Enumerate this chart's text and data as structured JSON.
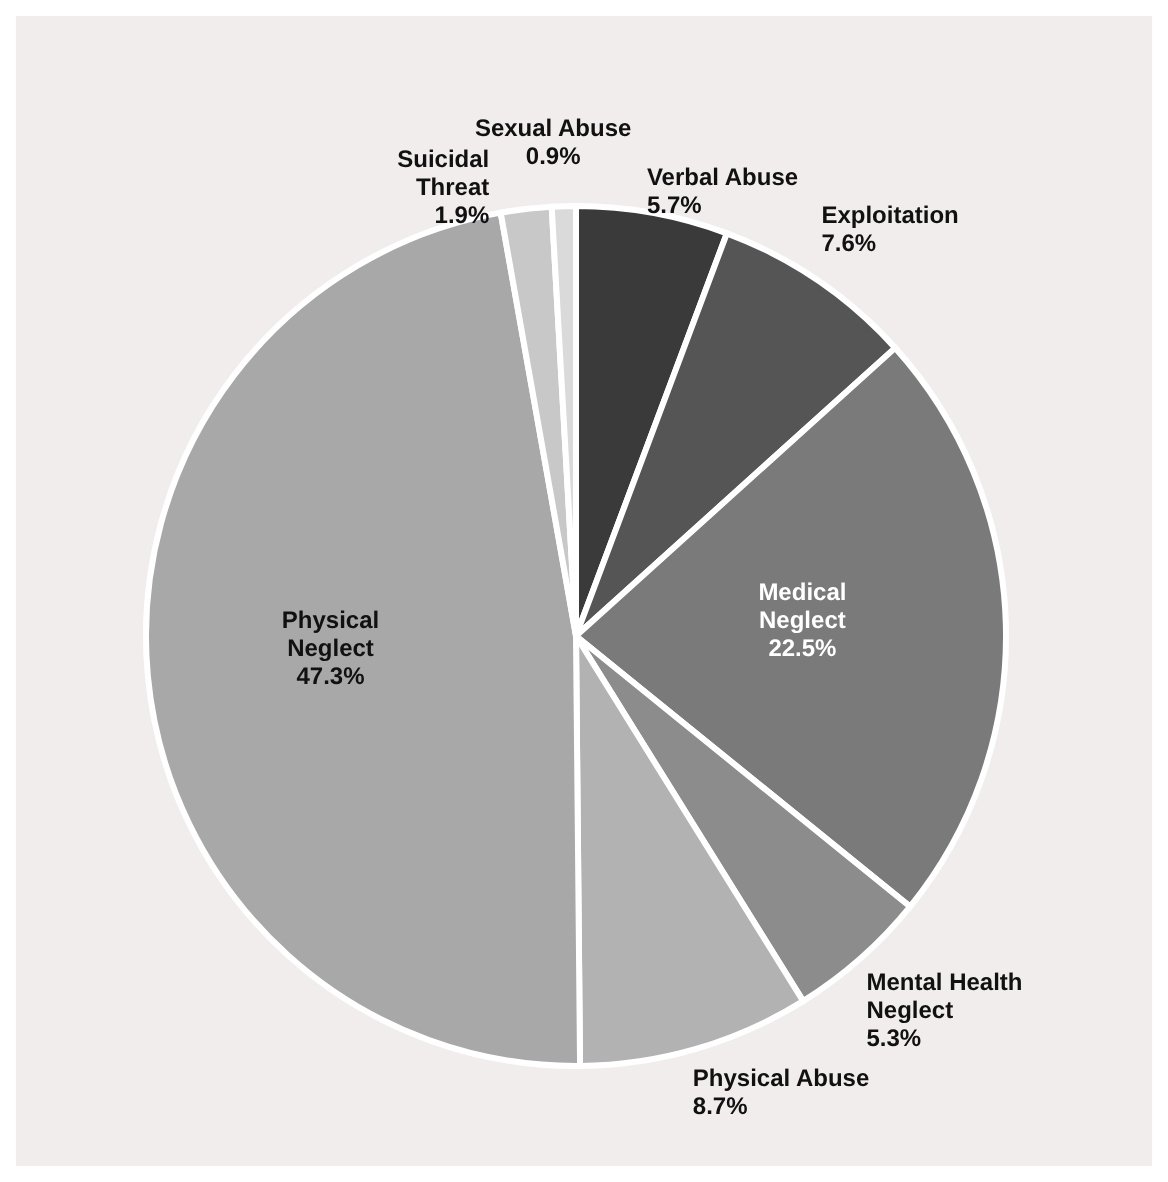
{
  "chart_data": {
    "type": "pie",
    "categories": [
      "Verbal Abuse",
      "Exploitation",
      "Medical Neglect",
      "Mental Health Neglect",
      "Physical Abuse",
      "Physical Neglect",
      "Suicidal Threat",
      "Sexual Abuse"
    ],
    "values": [
      5.7,
      7.6,
      22.5,
      5.3,
      8.7,
      47.3,
      1.9,
      0.9
    ],
    "colors": [
      "#3a3a3a",
      "#555555",
      "#7a7a7a",
      "#8c8c8c",
      "#b2b2b2",
      "#a8a8a8",
      "#c8c8c8",
      "#dadada"
    ],
    "value_labels": [
      "5.7%",
      "7.6%",
      "22.5%",
      "5.3%",
      "8.7%",
      "47.3%",
      "1.9%",
      "0.9%"
    ]
  }
}
